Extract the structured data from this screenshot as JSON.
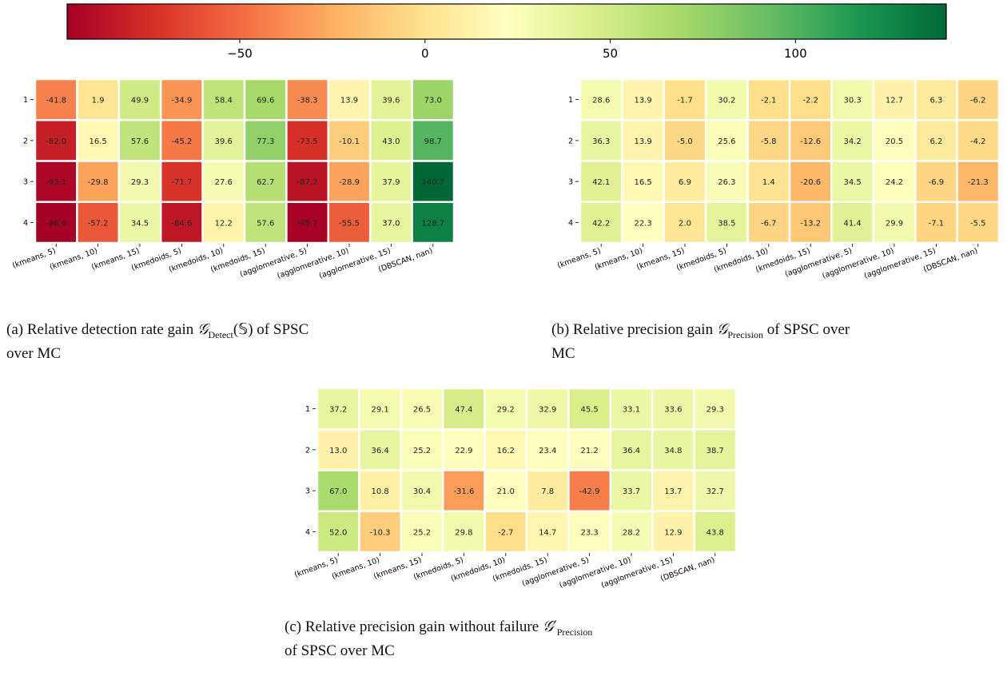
{
  "colorbar": {
    "vmin": -96.6,
    "vmax": 140.7,
    "ticks": [
      -50,
      0,
      50,
      100
    ],
    "tick_labels": [
      "−50",
      "0",
      "50",
      "100"
    ]
  },
  "chart_data": [
    {
      "type": "heatmap",
      "title": "",
      "row_labels": [
        "1",
        "2",
        "3",
        "4"
      ],
      "column_labels": [
        "(kmeans, 5)",
        "(kmeans, 10)",
        "(kmeans, 15)",
        "(kmedoids, 5)",
        "(kmedoids, 10)",
        "(kmedoids, 15)",
        "(agglomerative, 5)",
        "(agglomerative, 10)",
        "(agglomerative, 15)",
        "(DBSCAN, nan)"
      ],
      "values": [
        [
          -41.8,
          1.9,
          49.9,
          -34.9,
          58.4,
          69.6,
          -38.3,
          13.9,
          39.6,
          73.0
        ],
        [
          -82.0,
          16.5,
          57.6,
          -45.2,
          39.6,
          77.3,
          -73.5,
          -10.1,
          43.0,
          98.7
        ],
        [
          -93.1,
          -29.8,
          29.3,
          -71.7,
          27.6,
          62.7,
          -87.2,
          -28.9,
          37.9,
          140.7
        ],
        [
          -96.6,
          -57.2,
          34.5,
          -84.6,
          12.2,
          57.6,
          -95.7,
          -55.5,
          37.0,
          128.7
        ]
      ]
    },
    {
      "type": "heatmap",
      "title": "",
      "row_labels": [
        "1",
        "2",
        "3",
        "4"
      ],
      "column_labels": [
        "(kmeans, 5)",
        "(kmeans, 10)",
        "(kmeans, 15)",
        "(kmedoids, 5)",
        "(kmedoids, 10)",
        "(kmedoids, 15)",
        "(agglomerative, 5)",
        "(agglomerative, 10)",
        "(agglomerative, 15)",
        "(DBSCAN, nan)"
      ],
      "values": [
        [
          28.6,
          13.9,
          -1.7,
          30.2,
          -2.1,
          -2.2,
          30.3,
          12.7,
          6.3,
          -6.2
        ],
        [
          36.3,
          13.9,
          -5.0,
          25.6,
          -5.8,
          -12.6,
          34.2,
          20.5,
          6.2,
          -4.2
        ],
        [
          42.1,
          16.5,
          6.9,
          26.3,
          1.4,
          -20.6,
          34.5,
          24.2,
          -6.9,
          -21.3
        ],
        [
          42.2,
          22.3,
          2.0,
          38.5,
          -6.7,
          -13.2,
          41.4,
          29.9,
          -7.1,
          -5.5
        ]
      ]
    },
    {
      "type": "heatmap",
      "title": "",
      "row_labels": [
        "1",
        "2",
        "3",
        "4"
      ],
      "column_labels": [
        "(kmeans, 5)",
        "(kmeans, 10)",
        "(kmeans, 15)",
        "(kmedoids, 5)",
        "(kmedoids, 10)",
        "(kmedoids, 15)",
        "(agglomerative, 5)",
        "(agglomerative, 10)",
        "(agglomerative, 15)",
        "(DBSCAN, nan)"
      ],
      "values": [
        [
          37.2,
          29.1,
          26.5,
          47.4,
          29.2,
          32.9,
          45.5,
          33.1,
          33.6,
          29.3
        ],
        [
          13.0,
          36.4,
          25.2,
          22.9,
          16.2,
          23.4,
          21.2,
          36.4,
          34.8,
          38.7
        ],
        [
          67.0,
          10.8,
          30.4,
          -31.6,
          21.0,
          7.8,
          -42.9,
          33.7,
          13.7,
          32.7
        ],
        [
          52.0,
          -10.3,
          25.2,
          29.8,
          -2.7,
          14.7,
          23.3,
          28.2,
          12.9,
          43.8
        ]
      ]
    }
  ],
  "captions": [
    {
      "label": "(a)",
      "pre": "Relative detection rate gain",
      "symbol": "𝒢",
      "subscript": "Detect",
      "arg": "(𝕊)",
      "post": "of SPSC",
      "line2": "over MC"
    },
    {
      "label": "(b)",
      "pre": "Relative precision gain",
      "symbol": "𝒢",
      "subscript": "Precision",
      "post": "of SPSC over",
      "line2": "MC"
    },
    {
      "label": "(c)",
      "pre": "Relative precision gain without failure",
      "symbol": "𝒢′",
      "subscript": "Precision",
      "line2": "of SPSC over MC"
    }
  ]
}
